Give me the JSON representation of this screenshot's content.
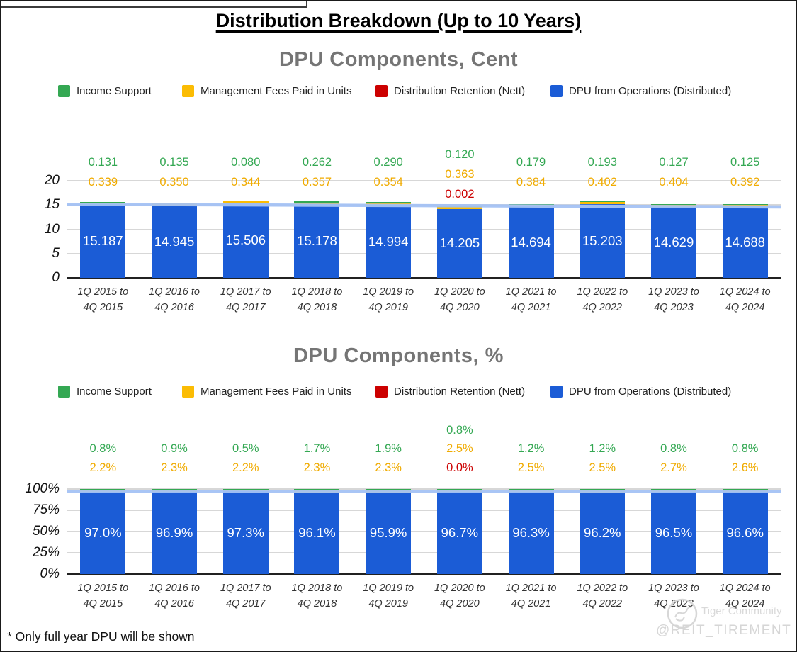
{
  "title": "Distribution Breakdown (Up to 10 Years)",
  "footnote": "* Only full year DPU will be shown",
  "watermark": {
    "brand": "Tiger Community",
    "handle": "@REIT_TIREMENT"
  },
  "colors": {
    "income_support": "#34a853",
    "management_fees": "#fbbc04",
    "distribution_retention": "#cc0000",
    "dpu_operations": "#1b5cd6",
    "overlay_line": "#a4c2f4",
    "gridline": "#d7d7d7",
    "axis": "#212121",
    "chart_title": "#757575",
    "label_green": "#34a853",
    "label_yellow": "#f0ab00",
    "label_red": "#cc0000"
  },
  "legend": {
    "items": [
      {
        "label": "Income Support",
        "color_key": "income_support"
      },
      {
        "label": "Management Fees Paid in Units",
        "color_key": "management_fees"
      },
      {
        "label": "Distribution Retention (Nett)",
        "color_key": "distribution_retention"
      },
      {
        "label": "DPU from Operations (Distributed)",
        "color_key": "dpu_operations"
      }
    ]
  },
  "chart_data": [
    {
      "type": "bar",
      "stacked": true,
      "title": "DPU Components, Cent",
      "ylim": [
        0,
        20
      ],
      "grid": true,
      "legend_position": "top",
      "y_ticks": [
        {
          "value": 20,
          "label": "20"
        },
        {
          "value": 15,
          "label": "15"
        },
        {
          "value": 10,
          "label": "10"
        },
        {
          "value": 5,
          "label": "5"
        },
        {
          "value": 0,
          "label": "0"
        }
      ],
      "categories": [
        {
          "line1": "1Q 2015 to",
          "line2": "4Q 2015"
        },
        {
          "line1": "1Q 2016 to",
          "line2": "4Q 2016"
        },
        {
          "line1": "1Q 2017 to",
          "line2": "4Q 2017"
        },
        {
          "line1": "1Q 2018 to",
          "line2": "4Q 2018"
        },
        {
          "line1": "1Q 2019 to",
          "line2": "4Q 2019"
        },
        {
          "line1": "1Q 2020 to",
          "line2": "4Q 2020"
        },
        {
          "line1": "1Q 2021 to",
          "line2": "4Q 2021"
        },
        {
          "line1": "1Q 2022 to",
          "line2": "4Q 2022"
        },
        {
          "line1": "1Q 2023 to",
          "line2": "4Q 2023"
        },
        {
          "line1": "1Q 2024 to",
          "line2": "4Q 2024"
        }
      ],
      "special_label_index": 5,
      "series": [
        {
          "name": "Income Support",
          "color": "#34a853",
          "values": [
            0.131,
            0.135,
            0.08,
            0.262,
            0.29,
            0.12,
            0.179,
            0.193,
            0.127,
            0.125
          ],
          "labels": [
            "0.131",
            "0.135",
            "0.080",
            "0.262",
            "0.290",
            "0.120",
            "0.179",
            "0.193",
            "0.127",
            "0.125"
          ]
        },
        {
          "name": "Management Fees Paid in Units",
          "color": "#fbbc04",
          "values": [
            0.339,
            0.35,
            0.344,
            0.357,
            0.354,
            0.363,
            0.384,
            0.402,
            0.404,
            0.392
          ],
          "labels": [
            "0.339",
            "0.350",
            "0.344",
            "0.357",
            "0.354",
            "0.363",
            "0.384",
            "0.402",
            "0.404",
            "0.392"
          ]
        },
        {
          "name": "Distribution Retention (Nett)",
          "color": "#cc0000",
          "values": [
            0,
            0,
            0,
            0,
            0,
            0.002,
            0,
            0,
            0,
            0
          ],
          "labels": [
            null,
            null,
            null,
            null,
            null,
            "0.002",
            null,
            null,
            null,
            null
          ]
        },
        {
          "name": "DPU from Operations (Distributed)",
          "color": "#1b5cd6",
          "values": [
            15.187,
            14.945,
            15.506,
            15.178,
            14.994,
            14.205,
            14.694,
            15.203,
            14.629,
            14.688
          ],
          "labels": [
            "15.187",
            "14.945",
            "15.506",
            "15.178",
            "14.994",
            "14.205",
            "14.694",
            "15.203",
            "14.629",
            "14.688"
          ]
        }
      ],
      "overlay_line": {
        "start": 15.15,
        "end": 14.6,
        "color": "#a4c2f4"
      }
    },
    {
      "type": "bar",
      "stacked": true,
      "title": "DPU Components, %",
      "ylim": [
        0,
        100
      ],
      "grid": true,
      "legend_position": "top",
      "y_ticks": [
        {
          "value": 100,
          "label": "100%"
        },
        {
          "value": 75,
          "label": "75%"
        },
        {
          "value": 50,
          "label": "50%"
        },
        {
          "value": 25,
          "label": "25%"
        },
        {
          "value": 0,
          "label": "0%"
        }
      ],
      "categories": [
        {
          "line1": "1Q 2015 to",
          "line2": "4Q 2015"
        },
        {
          "line1": "1Q 2016 to",
          "line2": "4Q 2016"
        },
        {
          "line1": "1Q 2017 to",
          "line2": "4Q 2017"
        },
        {
          "line1": "1Q 2018 to",
          "line2": "4Q 2018"
        },
        {
          "line1": "1Q 2019 to",
          "line2": "4Q 2019"
        },
        {
          "line1": "1Q 2020 to",
          "line2": "4Q 2020"
        },
        {
          "line1": "1Q 2021 to",
          "line2": "4Q 2021"
        },
        {
          "line1": "1Q 2022 to",
          "line2": "4Q 2022"
        },
        {
          "line1": "1Q 2023 to",
          "line2": "4Q 2023"
        },
        {
          "line1": "1Q 2024 to",
          "line2": "4Q 2024"
        }
      ],
      "special_label_index": 5,
      "series": [
        {
          "name": "Income Support",
          "color": "#34a853",
          "values": [
            0.8,
            0.9,
            0.5,
            1.7,
            1.9,
            0.8,
            1.2,
            1.2,
            0.8,
            0.8
          ],
          "labels": [
            "0.8%",
            "0.9%",
            "0.5%",
            "1.7%",
            "1.9%",
            "0.8%",
            "1.2%",
            "1.2%",
            "0.8%",
            "0.8%"
          ]
        },
        {
          "name": "Management Fees Paid in Units",
          "color": "#fbbc04",
          "values": [
            2.2,
            2.3,
            2.2,
            2.3,
            2.3,
            2.5,
            2.5,
            2.5,
            2.7,
            2.6
          ],
          "labels": [
            "2.2%",
            "2.3%",
            "2.2%",
            "2.3%",
            "2.3%",
            "2.5%",
            "2.5%",
            "2.5%",
            "2.7%",
            "2.6%"
          ]
        },
        {
          "name": "Distribution Retention (Nett)",
          "color": "#cc0000",
          "values": [
            0,
            0,
            0,
            0,
            0,
            0,
            0,
            0,
            0,
            0
          ],
          "labels": [
            null,
            null,
            null,
            null,
            null,
            "0.0%",
            null,
            null,
            null,
            null
          ]
        },
        {
          "name": "DPU from Operations (Distributed)",
          "color": "#1b5cd6",
          "values": [
            97.0,
            96.9,
            97.3,
            96.1,
            95.9,
            96.7,
            96.3,
            96.2,
            96.5,
            96.6
          ],
          "labels": [
            "97.0%",
            "96.9%",
            "97.3%",
            "96.1%",
            "95.9%",
            "96.7%",
            "96.3%",
            "96.2%",
            "96.5%",
            "96.6%"
          ]
        }
      ],
      "overlay_line": {
        "start": 97.3,
        "end": 96.8,
        "color": "#a4c2f4"
      }
    }
  ]
}
